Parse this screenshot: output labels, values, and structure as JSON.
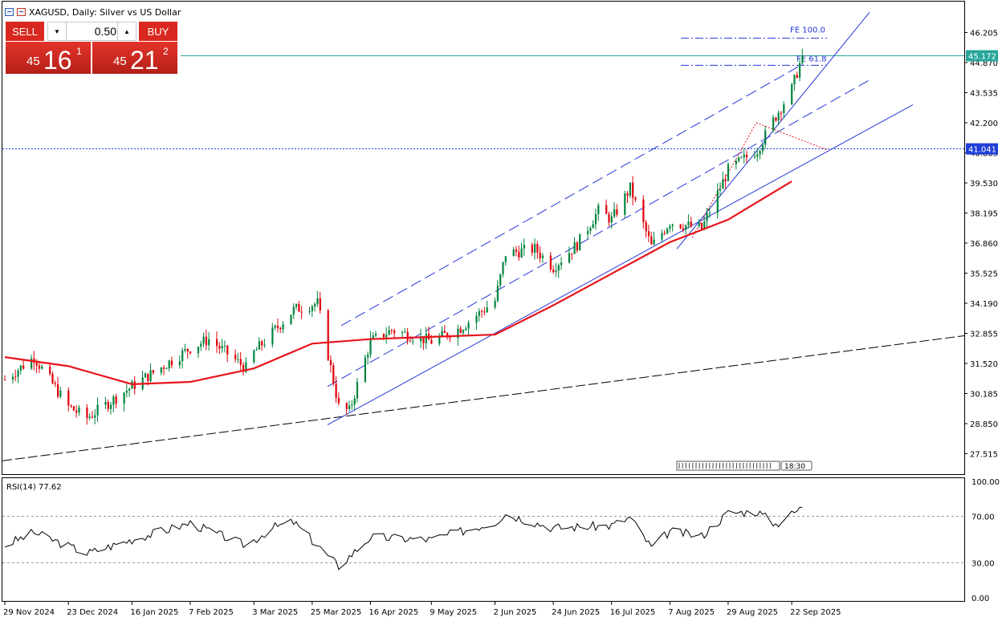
{
  "window": {
    "title": "XAGUSD, Daily:  Silver vs US Dollar",
    "icons": [
      "chart-window-icon",
      "symbol-flag-icon"
    ]
  },
  "trade_panel": {
    "sell_label": "SELL",
    "buy_label": "BUY",
    "lot_value": "0.50",
    "sell_price": {
      "small": "45",
      "big": "16",
      "sup": "1"
    },
    "buy_price": {
      "small": "45",
      "big": "21",
      "sup": "2"
    }
  },
  "price_axis": {
    "labels": [
      "46.205",
      "44.870",
      "43.535",
      "42.200",
      "40.865",
      "39.530",
      "38.195",
      "36.860",
      "35.525",
      "34.190",
      "32.855",
      "31.520",
      "30.185",
      "28.850",
      "27.515"
    ],
    "current_price_tag": "45.172",
    "level_tag": "41.041"
  },
  "rsi_axis": {
    "labels": [
      "100.00",
      "70.00",
      "30.00",
      "0.00"
    ]
  },
  "time_axis": {
    "labels": [
      "29 Nov 2024",
      "23 Dec 2024",
      "16 Jan 2025",
      "7 Feb 2025",
      "3 Mar 2025",
      "25 Mar 2025",
      "16 Apr 2025",
      "9 May 2025",
      "2 Jun 2025",
      "24 Jun 2025",
      "16 Jul 2025",
      "7 Aug 2025",
      "29 Aug 2025",
      "22 Sep 2025"
    ]
  },
  "annotations": {
    "fe100": "FE 100.0",
    "fe618": "FE 61.8",
    "countdown": "18:30"
  },
  "rsi_panel": {
    "label": "RSI(14) 77.62"
  },
  "colors": {
    "bull": "#00843d",
    "bear": "#e0000a",
    "ma": "#e8141b",
    "channel": "#2436d8",
    "tag_green": "#26a69a",
    "tag_blue": "#1f3fd8"
  },
  "chart_data": {
    "type": "candlestick",
    "symbol": "XAGUSD",
    "timeframe": "Daily",
    "y_range": [
      26.7,
      47.0
    ],
    "x_ticks": [
      "29 Nov 2024",
      "23 Dec 2024",
      "16 Jan 2025",
      "7 Feb 2025",
      "3 Mar 2025",
      "25 Mar 2025",
      "16 Apr 2025",
      "9 May 2025",
      "2 Jun 2025",
      "24 Jun 2025",
      "16 Jul 2025",
      "7 Aug 2025",
      "29 Aug 2025",
      "22 Sep 2025"
    ],
    "close_anchors": [
      {
        "date": "29 Nov 2024",
        "close": 30.8
      },
      {
        "date": "10 Dec 2024",
        "close": 31.8
      },
      {
        "date": "23 Dec 2024",
        "close": 29.6
      },
      {
        "date": "30 Dec 2024",
        "close": 29.1
      },
      {
        "date": "16 Jan 2025",
        "close": 30.5
      },
      {
        "date": "7 Feb 2025",
        "close": 32.2
      },
      {
        "date": "14 Feb 2025",
        "close": 32.6
      },
      {
        "date": "28 Feb 2025",
        "close": 31.3
      },
      {
        "date": "3 Mar 2025",
        "close": 32.0
      },
      {
        "date": "18 Mar 2025",
        "close": 33.9
      },
      {
        "date": "27 Mar 2025",
        "close": 34.2
      },
      {
        "date": "4 Apr 2025",
        "close": 29.6
      },
      {
        "date": "8 Apr 2025",
        "close": 29.4
      },
      {
        "date": "16 Apr 2025",
        "close": 32.5
      },
      {
        "date": "24 Apr 2025",
        "close": 33.0
      },
      {
        "date": "9 May 2025",
        "close": 32.5
      },
      {
        "date": "20 May 2025",
        "close": 33.1
      },
      {
        "date": "2 Jun 2025",
        "close": 34.3
      },
      {
        "date": "6 Jun 2025",
        "close": 36.4
      },
      {
        "date": "17 Jun 2025",
        "close": 36.6
      },
      {
        "date": "24 Jun 2025",
        "close": 35.8
      },
      {
        "date": "3 Jul 2025",
        "close": 36.8
      },
      {
        "date": "11 Jul 2025",
        "close": 38.3
      },
      {
        "date": "16 Jul 2025",
        "close": 37.9
      },
      {
        "date": "23 Jul 2025",
        "close": 39.3
      },
      {
        "date": "31 Jul 2025",
        "close": 36.7
      },
      {
        "date": "7 Aug 2025",
        "close": 37.8
      },
      {
        "date": "19 Aug 2025",
        "close": 37.5
      },
      {
        "date": "29 Aug 2025",
        "close": 40.1
      },
      {
        "date": "9 Sep 2025",
        "close": 41.0
      },
      {
        "date": "16 Sep 2025",
        "close": 42.5
      },
      {
        "date": "22 Sep 2025",
        "close": 43.7
      },
      {
        "date": "25 Sep 2025",
        "close": 44.8
      },
      {
        "date": "26 Sep 2025",
        "close": 45.172
      }
    ],
    "moving_average": [
      {
        "date": "29 Nov 2024",
        "value": 31.8
      },
      {
        "date": "23 Dec 2024",
        "value": 31.4
      },
      {
        "date": "16 Jan 2025",
        "value": 30.6
      },
      {
        "date": "7 Feb 2025",
        "value": 30.7
      },
      {
        "date": "3 Mar 2025",
        "value": 31.3
      },
      {
        "date": "25 Mar 2025",
        "value": 32.4
      },
      {
        "date": "16 Apr 2025",
        "value": 32.6
      },
      {
        "date": "9 May 2025",
        "value": 32.7
      },
      {
        "date": "2 Jun 2025",
        "value": 32.8
      },
      {
        "date": "24 Jun 2025",
        "value": 34.1
      },
      {
        "date": "16 Jul 2025",
        "value": 35.5
      },
      {
        "date": "7 Aug 2025",
        "value": 36.9
      },
      {
        "date": "29 Aug 2025",
        "value": 37.9
      },
      {
        "date": "22 Sep 2025",
        "value": 39.6
      }
    ],
    "levels": {
      "current_price": 45.172,
      "horizontal_level": 41.041,
      "fe_100": 45.95,
      "fe_61_8": 44.75
    },
    "rsi": {
      "period": 14,
      "last": 77.62,
      "y_range": [
        0,
        100
      ],
      "levels": [
        70,
        30
      ],
      "anchors": [
        {
          "date": "29 Nov 2024",
          "value": 45
        },
        {
          "date": "10 Dec 2024",
          "value": 56
        },
        {
          "date": "30 Dec 2024",
          "value": 38
        },
        {
          "date": "16 Jan 2025",
          "value": 50
        },
        {
          "date": "7 Feb 2025",
          "value": 64
        },
        {
          "date": "28 Feb 2025",
          "value": 45
        },
        {
          "date": "10 Mar 2025",
          "value": 60
        },
        {
          "date": "18 Mar 2025",
          "value": 65
        },
        {
          "date": "4 Apr 2025",
          "value": 27
        },
        {
          "date": "16 Apr 2025",
          "value": 52
        },
        {
          "date": "9 May 2025",
          "value": 50
        },
        {
          "date": "2 Jun 2025",
          "value": 65
        },
        {
          "date": "6 Jun 2025",
          "value": 72
        },
        {
          "date": "24 Jun 2025",
          "value": 60
        },
        {
          "date": "16 Jul 2025",
          "value": 62
        },
        {
          "date": "23 Jul 2025",
          "value": 69
        },
        {
          "date": "31 Jul 2025",
          "value": 43
        },
        {
          "date": "7 Aug 2025",
          "value": 57
        },
        {
          "date": "19 Aug 2025",
          "value": 53
        },
        {
          "date": "29 Aug 2025",
          "value": 73
        },
        {
          "date": "9 Sep 2025",
          "value": 74
        },
        {
          "date": "16 Sep 2025",
          "value": 63
        },
        {
          "date": "26 Sep 2025",
          "value": 77.62
        }
      ]
    }
  }
}
